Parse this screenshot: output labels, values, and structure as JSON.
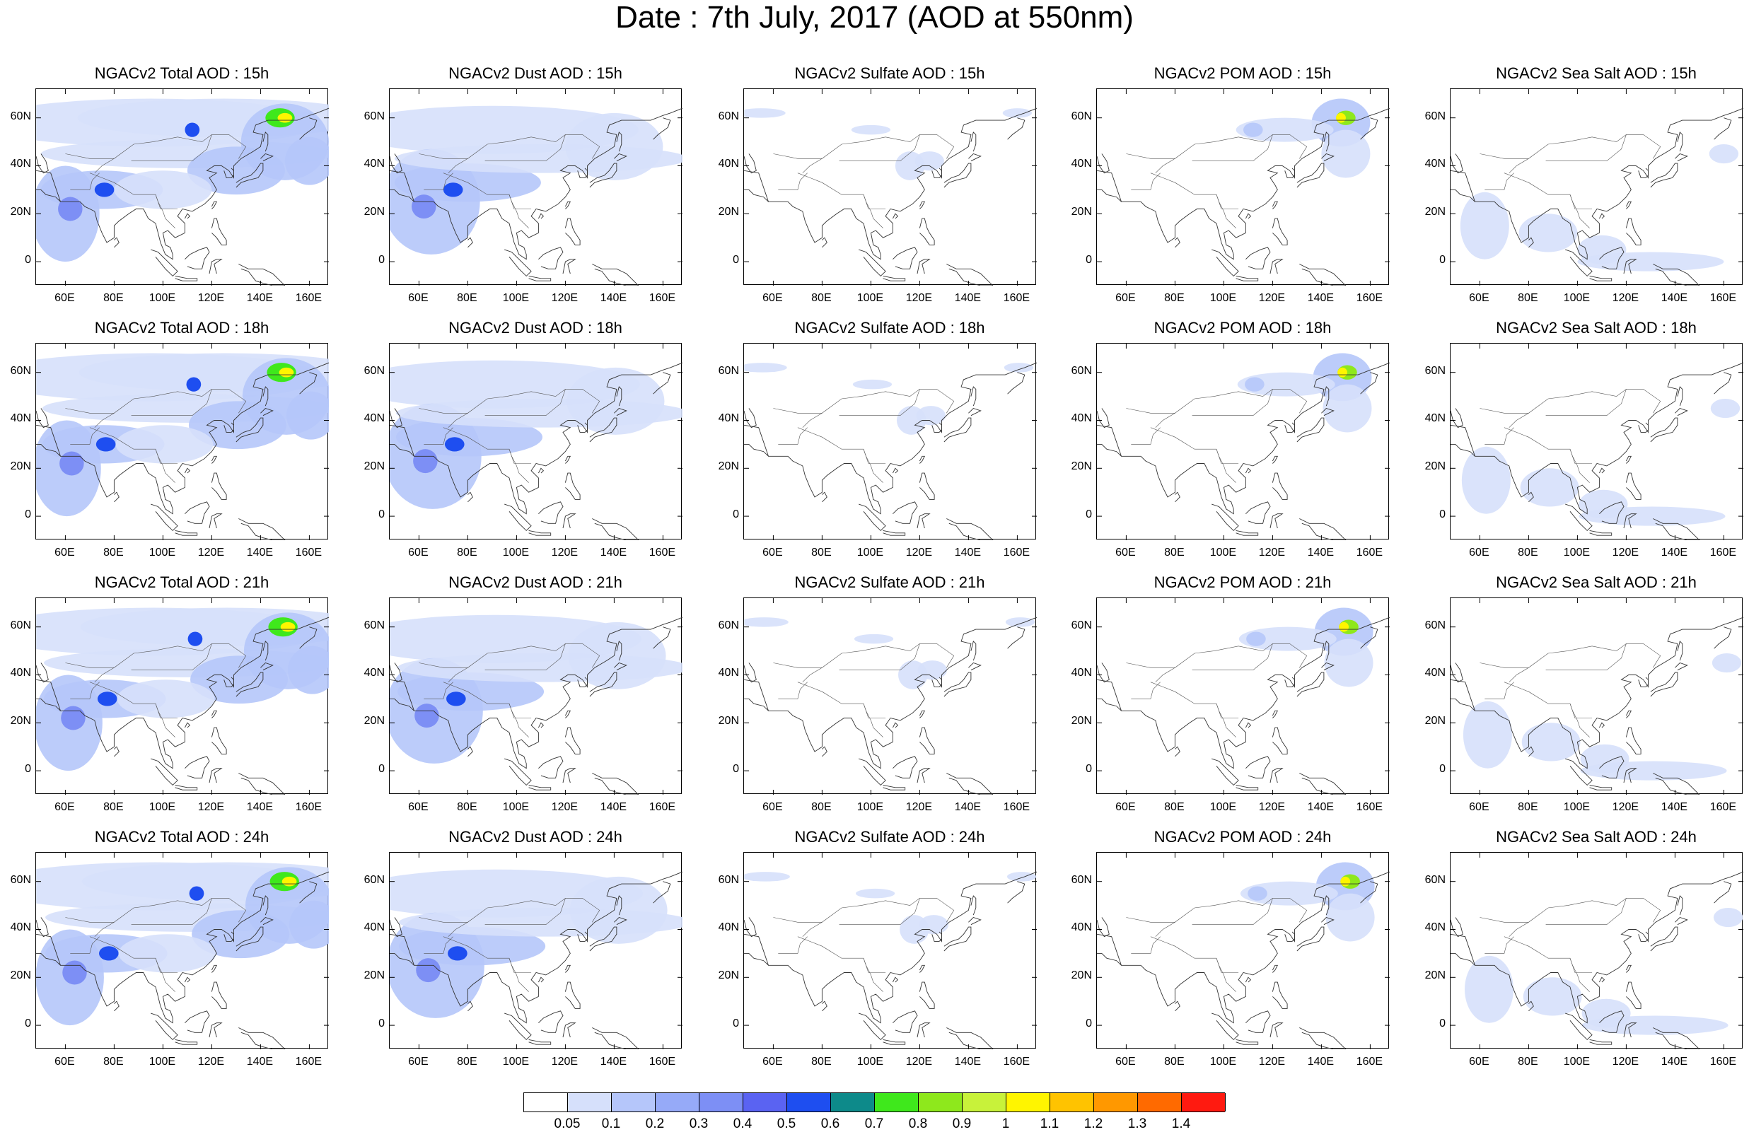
{
  "title": "Date : 7th July, 2017 (AOD at 550nm)",
  "panels": [
    [
      "NGACv2 Total AOD : 15h",
      "NGACv2 Dust AOD : 15h",
      "NGACv2 Sulfate AOD : 15h",
      "NGACv2 POM AOD : 15h",
      "NGACv2 Sea Salt AOD : 15h"
    ],
    [
      "NGACv2 Total AOD : 18h",
      "NGACv2 Dust AOD : 18h",
      "NGACv2 Sulfate AOD : 18h",
      "NGACv2 POM AOD : 18h",
      "NGACv2 Sea Salt AOD : 18h"
    ],
    [
      "NGACv2 Total AOD : 21h",
      "NGACv2 Dust AOD : 21h",
      "NGACv2 Sulfate AOD : 21h",
      "NGACv2 POM AOD : 21h",
      "NGACv2 Sea Salt AOD : 21h"
    ],
    [
      "NGACv2 Total AOD : 24h",
      "NGACv2 Dust AOD : 24h",
      "NGACv2 Sulfate AOD : 24h",
      "NGACv2 POM AOD : 24h",
      "NGACv2 Sea Salt  AOD : 24h"
    ]
  ],
  "y_ticks": [
    "60N",
    "40N",
    "20N",
    "0"
  ],
  "x_ticks": [
    "60E",
    "80E",
    "100E",
    "120E",
    "140E",
    "160E"
  ],
  "colorbar": {
    "labels": [
      "0.05",
      "0.1",
      "0.2",
      "0.3",
      "0.4",
      "0.5",
      "0.6",
      "0.7",
      "0.8",
      "0.9",
      "1",
      "1.1",
      "1.2",
      "1.3",
      "1.4"
    ],
    "colors": [
      "#ffffff",
      "#d6e0fb",
      "#b5c6fa",
      "#96aaf8",
      "#7d8ff5",
      "#5a63f2",
      "#1e4ef0",
      "#0d8a8a",
      "#3fe81c",
      "#8ee81c",
      "#c8f23a",
      "#fff500",
      "#ffc300",
      "#ff9800",
      "#ff6a00",
      "#ff1a10"
    ]
  }
}
